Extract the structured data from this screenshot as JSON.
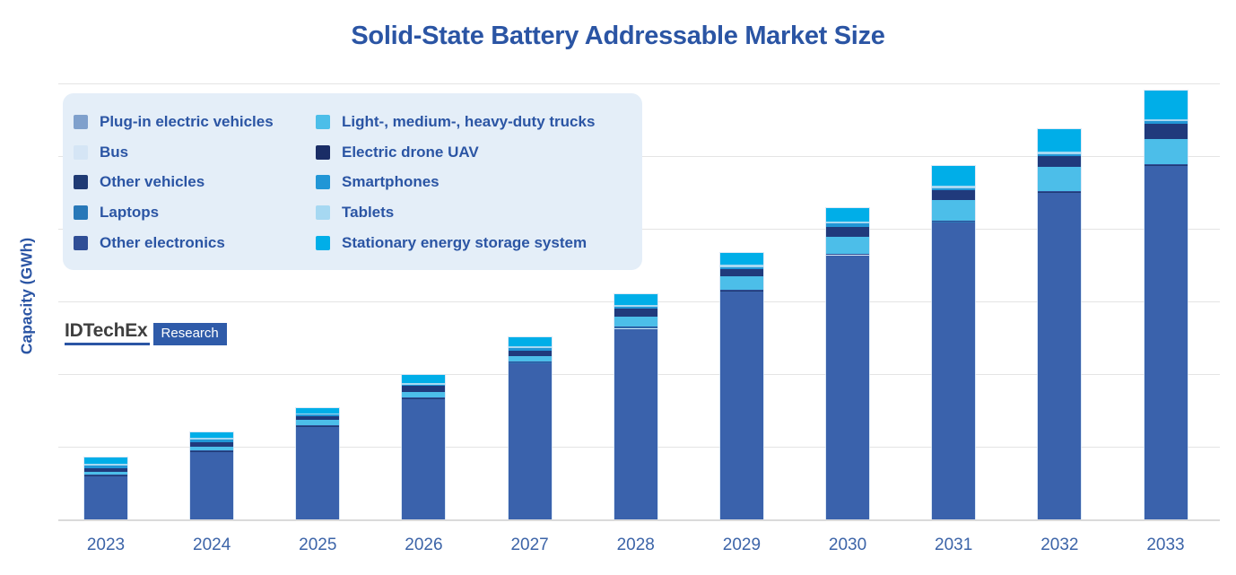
{
  "title": "Solid-State Battery Addressable Market Size",
  "y_axis_label": "Capacity (GWh)",
  "logo": {
    "brand": "IDTechEx",
    "sub": "Research"
  },
  "colors": {
    "title_text": "#2B55A4",
    "axis_tick_text": "#3C64A8",
    "legend_background": "#E4EEF8",
    "gridline": "#E4E4E4",
    "baseline": "#DADADA",
    "background": "#FFFFFF"
  },
  "legend": {
    "column_series_indices": [
      [
        0,
        1,
        2,
        3,
        4
      ],
      [
        5,
        6,
        7,
        8,
        9
      ]
    ]
  },
  "chart_data": {
    "type": "bar",
    "stacked": true,
    "title": "Solid-State Battery Addressable Market Size",
    "xlabel": "",
    "ylabel": "Capacity (GWh)",
    "y_axis_tick_labels_visible": false,
    "value_units": "relative (no numeric y ticks shown; 100 units per gridline interval)",
    "ylim": [
      0,
      600
    ],
    "grid": "horizontal",
    "legend_position": "upper-left inside plot, two columns, light-blue rounded panel",
    "categories": [
      "2023",
      "2024",
      "2025",
      "2026",
      "2027",
      "2028",
      "2029",
      "2030",
      "2031",
      "2032",
      "2033"
    ],
    "stack_order": "first series at bottom",
    "series": [
      {
        "name": "Plug-in electric vehicles",
        "color": "#3A62AC",
        "legend_color": "#7FA0CC",
        "values": [
          60,
          93,
          128,
          166,
          215,
          263,
          314,
          364,
          409,
          450,
          487
        ]
      },
      {
        "name": "Bus",
        "color": "#D5E5F5",
        "values": [
          0.5,
          0.5,
          0.5,
          0.5,
          0.5,
          0.5,
          0.5,
          0.5,
          0.5,
          0.5,
          0.5
        ]
      },
      {
        "name": "Other vehicles",
        "color": "#1F3A74",
        "values": [
          0.5,
          0.5,
          0.5,
          0.5,
          0.5,
          0.5,
          0.5,
          0.5,
          0.5,
          0.5,
          0.5
        ]
      },
      {
        "name": "Laptops",
        "color": "#2878B8",
        "values": [
          0.5,
          0.5,
          0.5,
          0.5,
          0.5,
          0.5,
          0.5,
          0.5,
          0.5,
          0.5,
          0.5
        ]
      },
      {
        "name": "Other electronics",
        "color": "#2F4E96",
        "values": [
          0.5,
          0.5,
          0.5,
          0.5,
          0.5,
          0.5,
          0.5,
          0.5,
          0.5,
          0.5,
          0.5
        ]
      },
      {
        "name": "Light-, medium-, heavy-duty trucks",
        "color": "#4CBEE9",
        "values": [
          3.7,
          5.4,
          6.8,
          7.5,
          7.5,
          13.7,
          18.7,
          23.2,
          29.0,
          33.1,
          35.0
        ]
      },
      {
        "name": "Electric drone UAV",
        "color": "#203A7C",
        "legend_color": "#1A2D66",
        "values": [
          4.4,
          6.2,
          5.6,
          8.1,
          7.5,
          11.2,
          10.0,
          13.3,
          12.5,
          14.9,
          20.0
        ]
      },
      {
        "name": "Smartphones",
        "color": "#2196D6",
        "values": [
          4.4,
          3.7,
          1.6,
          1.9,
          4.1,
          2.7,
          2.7,
          5.4,
          3.1,
          2.9,
          3.7
        ]
      },
      {
        "name": "Tablets",
        "color": "#A6D8F2",
        "values": [
          2.5,
          2.1,
          1.5,
          1.8,
          2.5,
          2.7,
          2.7,
          2.5,
          3.1,
          2.9,
          2.5
        ]
      },
      {
        "name": "Stationary energy storage system",
        "color": "#00AEE8",
        "values": [
          8.1,
          7.5,
          7.5,
          11.2,
          12.5,
          14.6,
          16.7,
          18.3,
          27.8,
          31.5,
          39.8
        ]
      }
    ]
  }
}
